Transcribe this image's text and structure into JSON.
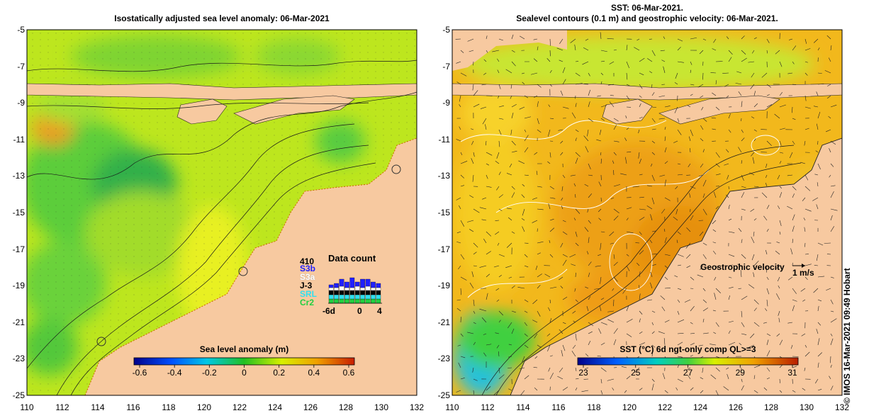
{
  "left_map": {
    "title": "Isostatically adjusted sea level anomaly: 06-Mar-2021",
    "colorbar": {
      "label": "Sea level anomaly (m)",
      "ticks": [
        "-0.6",
        "-0.4",
        "-0.2",
        "0",
        "0.2",
        "0.4",
        "0.6"
      ]
    },
    "data_count": {
      "title": "Data count",
      "max_label": "410",
      "missions": [
        {
          "name": "S3b",
          "color": "#2020ff"
        },
        {
          "name": "S3a",
          "color": "#ffffff"
        },
        {
          "name": "J-3",
          "color": "#000000"
        },
        {
          "name": "SRL",
          "color": "#30e0f0"
        },
        {
          "name": "Cr2",
          "color": "#20d040"
        }
      ],
      "x_ticks": [
        "-6d",
        "0",
        "4"
      ]
    }
  },
  "right_map": {
    "title_line1": "SST: 06-Mar-2021.",
    "title_line2": "Sealevel contours (0.1 m) and geostrophic velocity: 06-Mar-2021.",
    "colorbar": {
      "label": "SST (°C) 6d ngt-only comp QL>=3",
      "ticks": [
        "23",
        "25",
        "27",
        "29",
        "31"
      ]
    },
    "velocity_label": "Geostrophic velocity",
    "velocity_scale": "1 m/s"
  },
  "axes": {
    "lat_ticks": [
      "-5",
      "-7",
      "-9",
      "-11",
      "-13",
      "-15",
      "-17",
      "-19",
      "-21",
      "-23",
      "-25"
    ],
    "lon_ticks": [
      "110",
      "112",
      "114",
      "116",
      "118",
      "120",
      "122",
      "124",
      "126",
      "128",
      "130",
      "132"
    ]
  },
  "credit": "© IMOS 16-Mar-2021 09:49 Hobart",
  "colors": {
    "land": "#f7c9a0",
    "sla_low": "#00008b",
    "sla_zero": "#22c022",
    "sla_high": "#c81e00",
    "sst_low": "#00008b",
    "sst_mid": "#c8e632",
    "sst_high": "#b91e00"
  }
}
